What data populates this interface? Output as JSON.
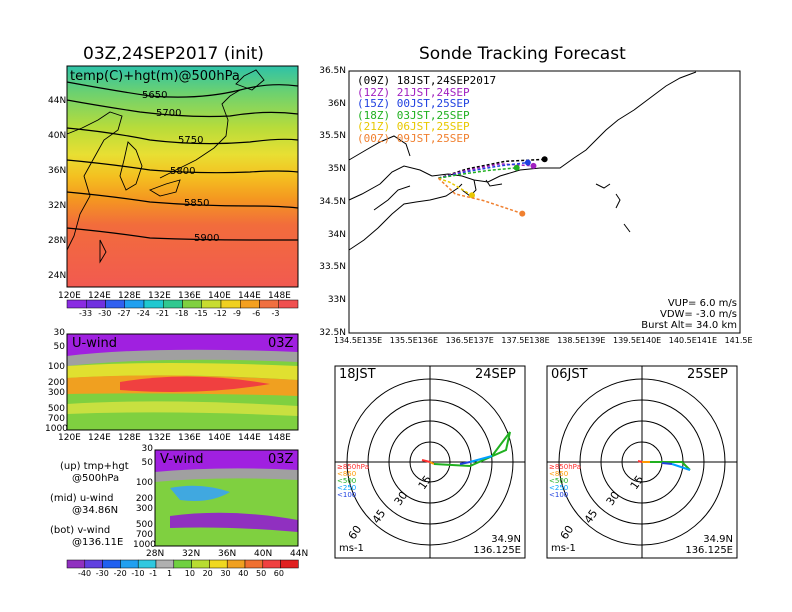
{
  "main": {
    "title": "03Z,24SEP2017 (init)",
    "upper": {
      "label": "temp(C)+hgt(m)@500hPa",
      "lat_ticks": [
        "44N",
        "40N",
        "36N",
        "32N",
        "28N",
        "24N"
      ],
      "lon_ticks": [
        "120E",
        "124E",
        "128E",
        "132E",
        "136E",
        "140E",
        "144E",
        "148E"
      ],
      "contours": [
        "5650",
        "5700",
        "5750",
        "5800",
        "5850",
        "5900"
      ]
    },
    "temp_colorbar": [
      "-33",
      "-30",
      "-27",
      "-24",
      "-21",
      "-18",
      "-15",
      "-12",
      "-9",
      "-6",
      "-3"
    ],
    "uwind": {
      "label": "U-wind",
      "time": "03Z",
      "p_ticks": [
        "30",
        "50",
        "100",
        "200",
        "300",
        "500",
        "700",
        "1000"
      ],
      "lon_ticks": [
        "120E",
        "124E",
        "128E",
        "132E",
        "136E",
        "140E",
        "144E",
        "148E"
      ]
    },
    "vwind": {
      "label": "V-wind",
      "time": "03Z",
      "p_ticks": [
        "30",
        "50",
        "100",
        "200",
        "300",
        "500",
        "700",
        "1000"
      ],
      "lat_ticks": [
        "28N",
        "32N",
        "36N",
        "40N",
        "44N"
      ]
    },
    "wind_colorbar": [
      "-40",
      "-30",
      "-20",
      "-10",
      "-1",
      "1",
      "10",
      "20",
      "30",
      "40",
      "50",
      "60"
    ],
    "notes": [
      "(up) tmp+hgt",
      "@500hPa",
      "(mid) u-wind",
      "@34.86N",
      "(bot) v-wind",
      "@136.11E"
    ]
  },
  "tracking": {
    "title": "Sonde Tracking Forecast",
    "legend": [
      {
        "text": "(09Z) 18JST,24SEP2017",
        "color": "#000000"
      },
      {
        "text": "(12Z) 21JST,24SEP",
        "color": "#a020c0"
      },
      {
        "text": "(15Z) 00JST,25SEP",
        "color": "#2040e0"
      },
      {
        "text": "(18Z) 03JST,25SEP",
        "color": "#20b020"
      },
      {
        "text": "(21Z) 06JST,25SEP",
        "color": "#e8c800"
      },
      {
        "text": "(00Z) 09JST,25SEP",
        "color": "#f08030"
      }
    ],
    "lat_ticks": [
      "36.5N",
      "36N",
      "35.5N",
      "35N",
      "34.5N",
      "34N",
      "33.5N",
      "33N",
      "32.5N"
    ],
    "lon_ticks": [
      "134.5E",
      "135E",
      "135.5E",
      "136E",
      "136.5E",
      "137E",
      "137.5E",
      "138E",
      "138.5E",
      "139E",
      "139.5E",
      "140E",
      "140.5E",
      "141E",
      "141.5E"
    ],
    "params": [
      "VUP= 6.0 m/s",
      "VDW= -3.0 m/s",
      "Burst Alt= 34.0 km"
    ]
  },
  "hodographs": [
    {
      "time": "18JST",
      "date": "24SEP",
      "ring_labels": [
        "15",
        "30",
        "45",
        "60"
      ],
      "levels": [
        "≥850hPa",
        "<850",
        "<500",
        "<250",
        "<100"
      ],
      "unit": "ms-1",
      "lat": "34.9N",
      "lon": "136.125E"
    },
    {
      "time": "06JST",
      "date": "25SEP",
      "ring_labels": [
        "15",
        "30",
        "45",
        "60"
      ],
      "levels": [
        "≥850hPa",
        "<850",
        "<500",
        "<250",
        "<100"
      ],
      "unit": "ms-1",
      "lat": "34.9N",
      "lon": "136.125E"
    }
  ],
  "colors": {
    "level_colors": [
      "#ff3030",
      "#ff9900",
      "#20b020",
      "#00a0ff",
      "#2040e0"
    ]
  }
}
